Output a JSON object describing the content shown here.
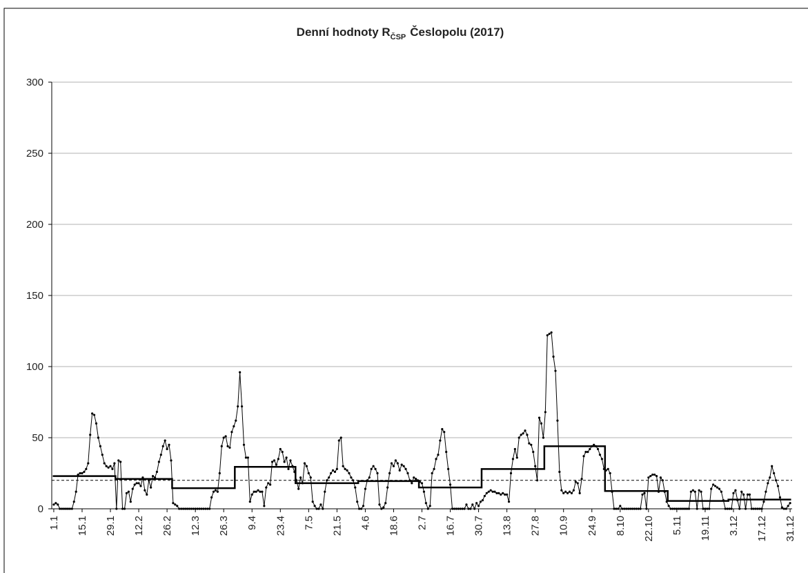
{
  "chart_data": {
    "type": "line",
    "title": "Denní hodnoty R",
    "title_subscript": "ČSP",
    "title_suffix": "Česlopolu (2017)",
    "x": [
      1,
      2,
      3,
      4,
      5,
      6,
      7,
      8,
      9,
      10,
      11,
      12,
      13,
      14,
      15,
      16,
      17,
      18,
      19,
      20,
      21,
      22,
      23,
      24,
      25,
      26,
      27,
      28,
      29,
      30,
      31,
      32,
      33,
      34,
      35,
      36,
      37,
      38,
      39,
      40,
      41,
      42,
      43,
      44,
      45,
      46,
      47,
      48,
      49,
      50,
      51,
      52,
      53,
      54,
      55,
      56,
      57,
      58,
      59,
      60,
      61,
      62,
      63,
      64,
      65,
      66,
      67,
      68,
      69,
      70,
      71,
      72,
      73,
      74,
      75,
      76,
      77,
      78,
      79,
      80,
      81,
      82,
      83,
      84,
      85,
      86,
      87,
      88,
      89,
      90,
      91,
      92,
      93,
      94,
      95,
      96,
      97,
      98,
      99,
      100,
      101,
      102,
      103,
      104,
      105,
      106,
      107,
      108,
      109,
      110,
      111,
      112,
      113,
      114,
      115,
      116,
      117,
      118,
      119,
      120,
      121,
      122,
      123,
      124,
      125,
      126,
      127,
      128,
      129,
      130,
      131,
      132,
      133,
      134,
      135,
      136,
      137,
      138,
      139,
      140,
      141,
      142,
      143,
      144,
      145,
      146,
      147,
      148,
      149,
      150,
      151,
      152,
      153,
      154,
      155,
      156,
      157,
      158,
      159,
      160,
      161,
      162,
      163,
      164,
      165,
      166,
      167,
      168,
      169,
      170,
      171,
      172,
      173,
      174,
      175,
      176,
      177,
      178,
      179,
      180,
      181,
      182,
      183,
      184,
      185,
      186,
      187,
      188,
      189,
      190,
      191,
      192,
      193,
      194,
      195,
      196,
      197,
      198,
      199,
      200,
      201,
      202,
      203,
      204,
      205,
      206,
      207,
      208,
      209,
      210,
      211,
      212,
      213,
      214,
      215,
      216,
      217,
      218,
      219,
      220,
      221,
      222,
      223,
      224,
      225,
      226,
      227,
      228,
      229,
      230,
      231,
      232,
      233,
      234,
      235,
      236,
      237,
      238,
      239,
      240,
      241,
      242,
      243,
      244,
      245,
      246,
      247,
      248,
      249,
      250,
      251,
      252,
      253,
      254,
      255,
      256,
      257,
      258,
      259,
      260,
      261,
      262,
      263,
      264,
      265,
      266,
      267,
      268,
      269,
      270,
      271,
      272,
      273,
      274,
      275,
      276,
      277,
      278,
      279,
      280,
      281,
      282,
      283,
      284,
      285,
      286,
      287,
      288,
      289,
      290,
      291,
      292,
      293,
      294,
      295,
      296,
      297,
      298,
      299,
      300,
      301,
      302,
      303,
      304,
      305,
      306,
      307,
      308,
      309,
      310,
      311,
      312,
      313,
      314,
      315,
      316,
      317,
      318,
      319,
      320,
      321,
      322,
      323,
      324,
      325,
      326,
      327,
      328,
      329,
      330,
      331,
      332,
      333,
      334,
      335,
      336,
      337,
      338,
      339,
      340,
      341,
      342,
      343,
      344,
      345,
      346,
      347,
      348,
      349,
      350,
      351,
      352,
      353,
      354,
      355,
      356,
      357,
      358,
      359,
      360,
      361,
      362,
      363,
      364,
      365
    ],
    "series": [
      {
        "color": "#000000",
        "values": [
          3,
          4,
          3,
          0,
          0,
          0,
          0,
          0,
          0,
          0,
          5,
          12,
          24,
          25,
          25,
          26,
          28,
          32,
          52,
          67,
          66,
          60,
          50,
          44,
          38,
          32,
          30,
          29,
          30,
          28,
          32,
          0,
          34,
          33,
          0,
          0,
          11,
          12,
          5,
          14,
          17,
          18,
          18,
          16,
          22,
          13,
          10,
          20,
          15,
          23,
          22,
          26,
          33,
          38,
          44,
          48,
          42,
          45,
          34,
          4,
          3,
          2,
          0,
          0,
          0,
          0,
          0,
          0,
          0,
          0,
          0,
          0,
          0,
          0,
          0,
          0,
          0,
          0,
          8,
          12,
          13,
          12,
          25,
          44,
          50,
          51,
          44,
          43,
          54,
          58,
          62,
          72,
          96,
          72,
          45,
          36,
          36,
          5,
          10,
          12,
          12,
          13,
          12,
          12,
          2,
          15,
          18,
          17,
          33,
          34,
          31,
          35,
          42,
          40,
          33,
          36,
          28,
          34,
          30,
          26,
          20,
          14,
          22,
          18,
          32,
          30,
          25,
          22,
          5,
          2,
          0,
          0,
          3,
          0,
          12,
          20,
          22,
          25,
          27,
          26,
          28,
          48,
          50,
          30,
          28,
          27,
          25,
          22,
          20,
          15,
          5,
          0,
          0,
          2,
          14,
          20,
          22,
          28,
          30,
          28,
          25,
          3,
          0,
          1,
          4,
          15,
          25,
          32,
          30,
          34,
          32,
          27,
          31,
          30,
          28,
          25,
          20,
          18,
          22,
          21,
          20,
          19,
          18,
          12,
          4,
          0,
          2,
          25,
          28,
          35,
          38,
          48,
          56,
          54,
          40,
          28,
          17,
          0,
          0,
          0,
          0,
          0,
          0,
          0,
          3,
          0,
          0,
          3,
          0,
          4,
          2,
          5,
          6,
          9,
          11,
          12,
          13,
          12,
          12,
          11,
          11,
          10,
          11,
          10,
          10,
          5,
          25,
          35,
          42,
          36,
          50,
          52,
          53,
          55,
          52,
          46,
          45,
          40,
          30,
          20,
          64,
          60,
          50,
          68,
          122,
          123,
          124,
          107,
          97,
          62,
          26,
          13,
          11,
          12,
          11,
          12,
          11,
          13,
          19,
          18,
          11,
          21,
          37,
          40,
          40,
          42,
          44,
          45,
          44,
          42,
          38,
          35,
          28,
          27,
          28,
          25,
          12,
          0,
          0,
          0,
          2,
          0,
          0,
          0,
          0,
          0,
          0,
          0,
          0,
          0,
          0,
          10,
          11,
          0,
          22,
          23,
          24,
          24,
          23,
          12,
          22,
          20,
          12,
          5,
          2,
          0,
          0,
          0,
          0,
          0,
          0,
          0,
          0,
          0,
          0,
          12,
          13,
          12,
          0,
          13,
          12,
          0,
          0,
          0,
          0,
          14,
          17,
          16,
          15,
          14,
          12,
          6,
          0,
          0,
          0,
          0,
          11,
          13,
          6,
          0,
          12,
          10,
          0,
          10,
          10,
          0,
          0,
          0,
          0,
          0,
          0,
          5,
          12,
          18,
          22,
          30,
          25,
          20,
          16,
          8,
          1,
          0,
          0,
          2,
          4
        ]
      }
    ],
    "monthly": {
      "color": "#000000",
      "x": [
        1,
        32,
        60,
        91,
        121,
        152,
        182,
        213,
        244,
        274,
        305,
        335
      ],
      "values": [
        23,
        21,
        14.5,
        29.5,
        18,
        19.5,
        15,
        28,
        44,
        12.5,
        5.5,
        6.5
      ]
    },
    "reference_line": 20,
    "xlim": [
      0,
      366
    ],
    "ylim": [
      0,
      300
    ],
    "yticks": [
      0,
      50,
      100,
      150,
      200,
      250,
      300
    ],
    "grid": true,
    "xticks": [
      {
        "value": 1,
        "label": "1.1"
      },
      {
        "value": 15,
        "label": "15.1"
      },
      {
        "value": 29,
        "label": "29.1"
      },
      {
        "value": 43,
        "label": "12.2"
      },
      {
        "value": 57,
        "label": "26.2"
      },
      {
        "value": 71,
        "label": "12.3"
      },
      {
        "value": 85,
        "label": "26.3"
      },
      {
        "value": 99,
        "label": "9.4"
      },
      {
        "value": 113,
        "label": "23.4"
      },
      {
        "value": 127,
        "label": "7.5"
      },
      {
        "value": 141,
        "label": "21.5"
      },
      {
        "value": 155,
        "label": "4.6"
      },
      {
        "value": 169,
        "label": "18.6"
      },
      {
        "value": 183,
        "label": "2.7"
      },
      {
        "value": 197,
        "label": "16.7"
      },
      {
        "value": 211,
        "label": "30.7"
      },
      {
        "value": 225,
        "label": "13.8"
      },
      {
        "value": 239,
        "label": "27.8"
      },
      {
        "value": 253,
        "label": "10.9"
      },
      {
        "value": 267,
        "label": "24.9"
      },
      {
        "value": 281,
        "label": "8.10"
      },
      {
        "value": 295,
        "label": "22.10"
      },
      {
        "value": 309,
        "label": "5.11"
      },
      {
        "value": 323,
        "label": "19.11"
      },
      {
        "value": 337,
        "label": "3.12"
      },
      {
        "value": 351,
        "label": "17.12"
      },
      {
        "value": 365,
        "label": "31.12"
      }
    ]
  }
}
